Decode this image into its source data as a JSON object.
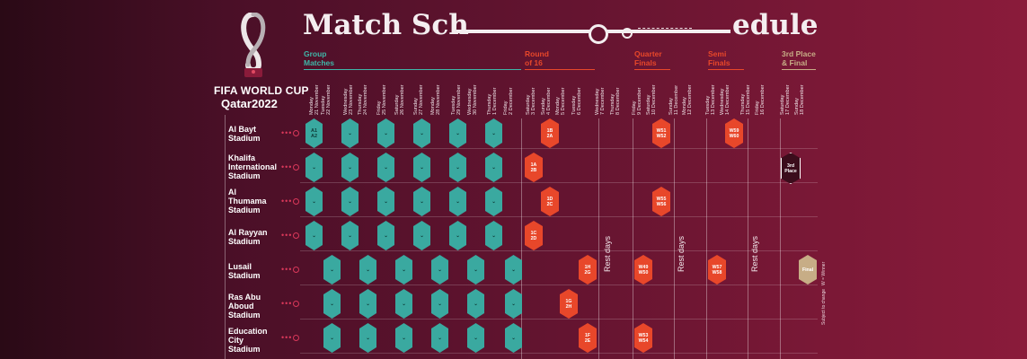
{
  "header": {
    "brand_line1": "FIFA WORLD CUP",
    "brand_line2": "Qatar2022",
    "title_left": "Match Sch",
    "title_right": "edule"
  },
  "phases": [
    {
      "label": "Group\nMatches",
      "color": "#3fb6a8"
    },
    {
      "label": "Round\nof 16",
      "color": "#e8472a"
    },
    {
      "label": "Quarter\nFinals",
      "color": "#e8472a"
    },
    {
      "label": "Semi\nFinals",
      "color": "#e8472a"
    },
    {
      "label": "3rd Place\n& Final",
      "color": "#c7ad86"
    }
  ],
  "dates": [
    "Monday\n21 November",
    "Tuesday\n22 November",
    "Wednesday\n23 November",
    "Thursday\n24 November",
    "Friday\n25 November",
    "Saturday\n26 November",
    "Sunday\n27 November",
    "Monday\n28 November",
    "Tuesday\n29 November",
    "Wednesday\n30 November",
    "Thursday\n1 December",
    "Friday\n2 December",
    "Saturday\n3 December",
    "Sunday\n4 December",
    "Monday\n5 December",
    "Tuesday\n6 December",
    "Wednesday\n7 December",
    "Thursday\n8 December",
    "Friday\n9 December",
    "Saturday\n10 December",
    "Sunday\n11 December",
    "Monday\n12 December",
    "Tuesday\n13 December",
    "Wednesday\n14 December",
    "Thursday\n15 December",
    "Friday\n16 December",
    "Saturday\n17 December",
    "Sunday\n18 December"
  ],
  "stadiums": [
    "Al Bayt\nStadium",
    "Khalifa\nInternational\nStadium",
    "Al\nThumama\nStadium",
    "Al Rayyan\nStadium",
    "Lusail\nStadium",
    "Ras Abu\nAboud\nStadium",
    "Education\nCity\nStadium"
  ],
  "knockout_matches": [
    {
      "code": "1B\n2A"
    },
    {
      "code": "W51\nW52"
    },
    {
      "code": "W59\nW60"
    },
    {
      "code": "1A\n2B"
    },
    {
      "code": "3rd\nPlace"
    },
    {
      "code": "1D\n2C"
    },
    {
      "code": "W55\nW56"
    },
    {
      "code": "1C\n2D"
    },
    {
      "code": "1H\n2G"
    },
    {
      "code": "W49\nW50"
    },
    {
      "code": "W57\nW58"
    },
    {
      "code": "Final"
    },
    {
      "code": "1G\n2H"
    },
    {
      "code": "1F\n2E"
    },
    {
      "code": "W53\nW54"
    }
  ],
  "group_match": {
    "code": "A1\nA2"
  },
  "rest_days_label": "Rest days",
  "side_notes": [
    "W = Winner",
    "Subject to change"
  ]
}
